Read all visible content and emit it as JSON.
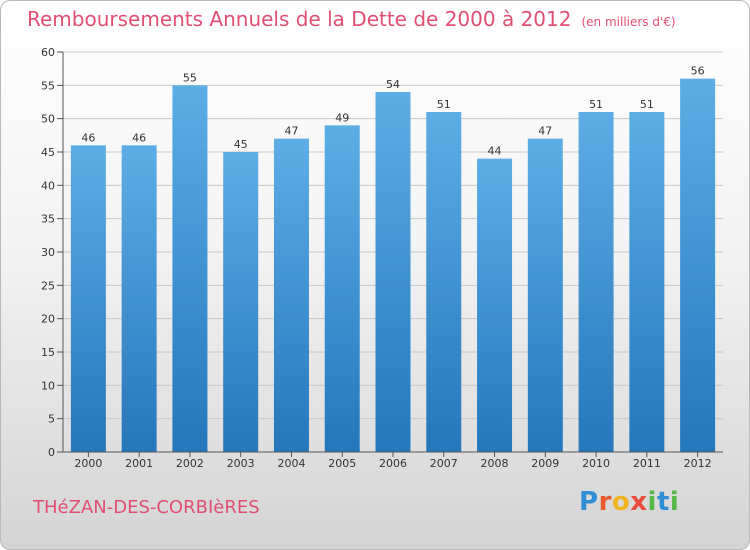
{
  "header": {
    "title": "Remboursements Annuels de la Dette de 2000 à 2012",
    "unit": "(en milliers d'€)"
  },
  "footer": {
    "commune": "THéZAN-DES-CORBIèRES",
    "logo_text": "Proxiti"
  },
  "colors": {
    "title": "#e14f73",
    "bar_top": "#5dade6",
    "bar_bottom": "#2577bb",
    "grid": "#c8c8c8"
  },
  "chart_data": {
    "type": "bar",
    "title": "Remboursements Annuels de la Dette de 2000 à 2012",
    "xlabel": "",
    "ylabel": "",
    "categories": [
      "2000",
      "2001",
      "2002",
      "2003",
      "2004",
      "2005",
      "2006",
      "2007",
      "2008",
      "2009",
      "2010",
      "2011",
      "2012"
    ],
    "values": [
      46,
      46,
      55,
      45,
      47,
      49,
      54,
      51,
      44,
      47,
      51,
      51,
      56
    ],
    "ylim": [
      0,
      60
    ],
    "yticks": [
      0,
      5,
      10,
      15,
      20,
      25,
      30,
      35,
      40,
      45,
      50,
      55,
      60
    ],
    "grid": true
  }
}
